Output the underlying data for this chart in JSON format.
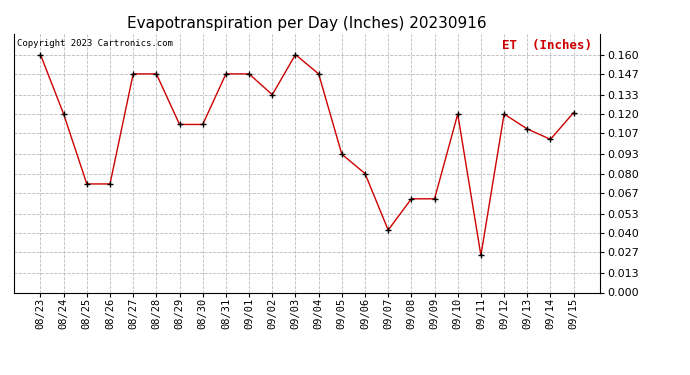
{
  "title": "Evapotranspiration per Day (Inches) 20230916",
  "legend_label": "ET  (Inches)",
  "copyright": "Copyright 2023 Cartronics.com",
  "line_color": "#cc0000",
  "marker_color": "#000000",
  "bg_color": "#ffffff",
  "grid_color": "#bbbbbb",
  "x_labels": [
    "08/23",
    "08/24",
    "08/25",
    "08/26",
    "08/27",
    "08/28",
    "08/29",
    "08/30",
    "08/31",
    "09/01",
    "09/02",
    "09/03",
    "09/04",
    "09/05",
    "09/06",
    "09/07",
    "09/08",
    "09/09",
    "09/10",
    "09/11",
    "09/12",
    "09/13",
    "09/14",
    "09/15"
  ],
  "y_values": [
    0.16,
    0.12,
    0.073,
    0.073,
    0.147,
    0.147,
    0.113,
    0.113,
    0.147,
    0.147,
    0.133,
    0.16,
    0.147,
    0.093,
    0.08,
    0.042,
    0.063,
    0.063,
    0.12,
    0.025,
    0.12,
    0.11,
    0.103,
    0.121
  ],
  "ylim": [
    0.0,
    0.174
  ],
  "yticks": [
    0.0,
    0.013,
    0.027,
    0.04,
    0.053,
    0.067,
    0.08,
    0.093,
    0.107,
    0.12,
    0.133,
    0.147,
    0.16
  ],
  "title_fontsize": 11,
  "copyright_fontsize": 6.5,
  "legend_fontsize": 9,
  "tick_fontsize": 7.5,
  "ytick_fontsize": 8
}
